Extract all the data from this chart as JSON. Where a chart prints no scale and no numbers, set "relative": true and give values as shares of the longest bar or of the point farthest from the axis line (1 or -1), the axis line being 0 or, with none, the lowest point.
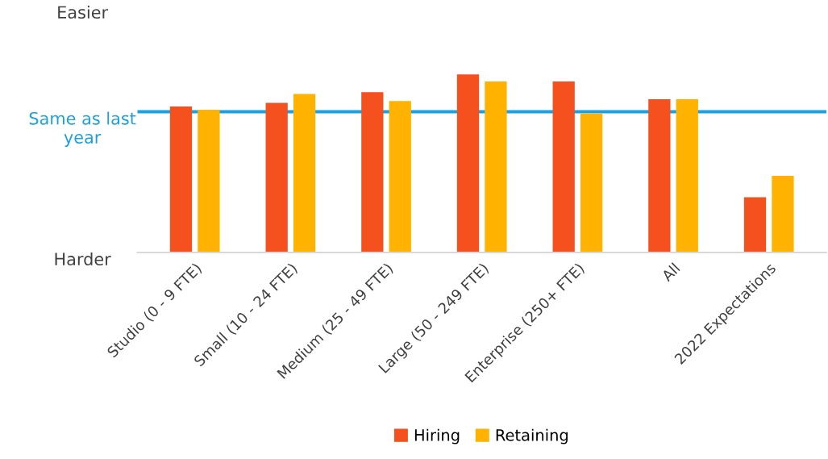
{
  "chart_data": {
    "type": "bar",
    "relative": true,
    "categories": [
      "Studio (0 - 9 FTE)",
      "Small (10 - 24 FTE)",
      "Medium (25 - 49 FTE)",
      "Large (50 - 249 FTE)",
      "Enterprise (250+ FTE)",
      "All",
      "2022 Expectations"
    ],
    "series": [
      {
        "name": "Hiring",
        "color": "#f4511e",
        "values": [
          0.82,
          0.84,
          0.9,
          1,
          0.96,
          0.86,
          0.31
        ]
      },
      {
        "name": "Retaining",
        "color": "#ffb300",
        "values": [
          0.8,
          0.89,
          0.85,
          0.96,
          0.78,
          0.86,
          0.43
        ]
      }
    ],
    "ref_lines": [
      {
        "axis": "y",
        "value": 0.79,
        "label": "Same as last year",
        "color": "#1ba1e2"
      }
    ],
    "annotations": [
      "Easier",
      "Harder"
    ],
    "legend": "bottom",
    "grid": false
  }
}
